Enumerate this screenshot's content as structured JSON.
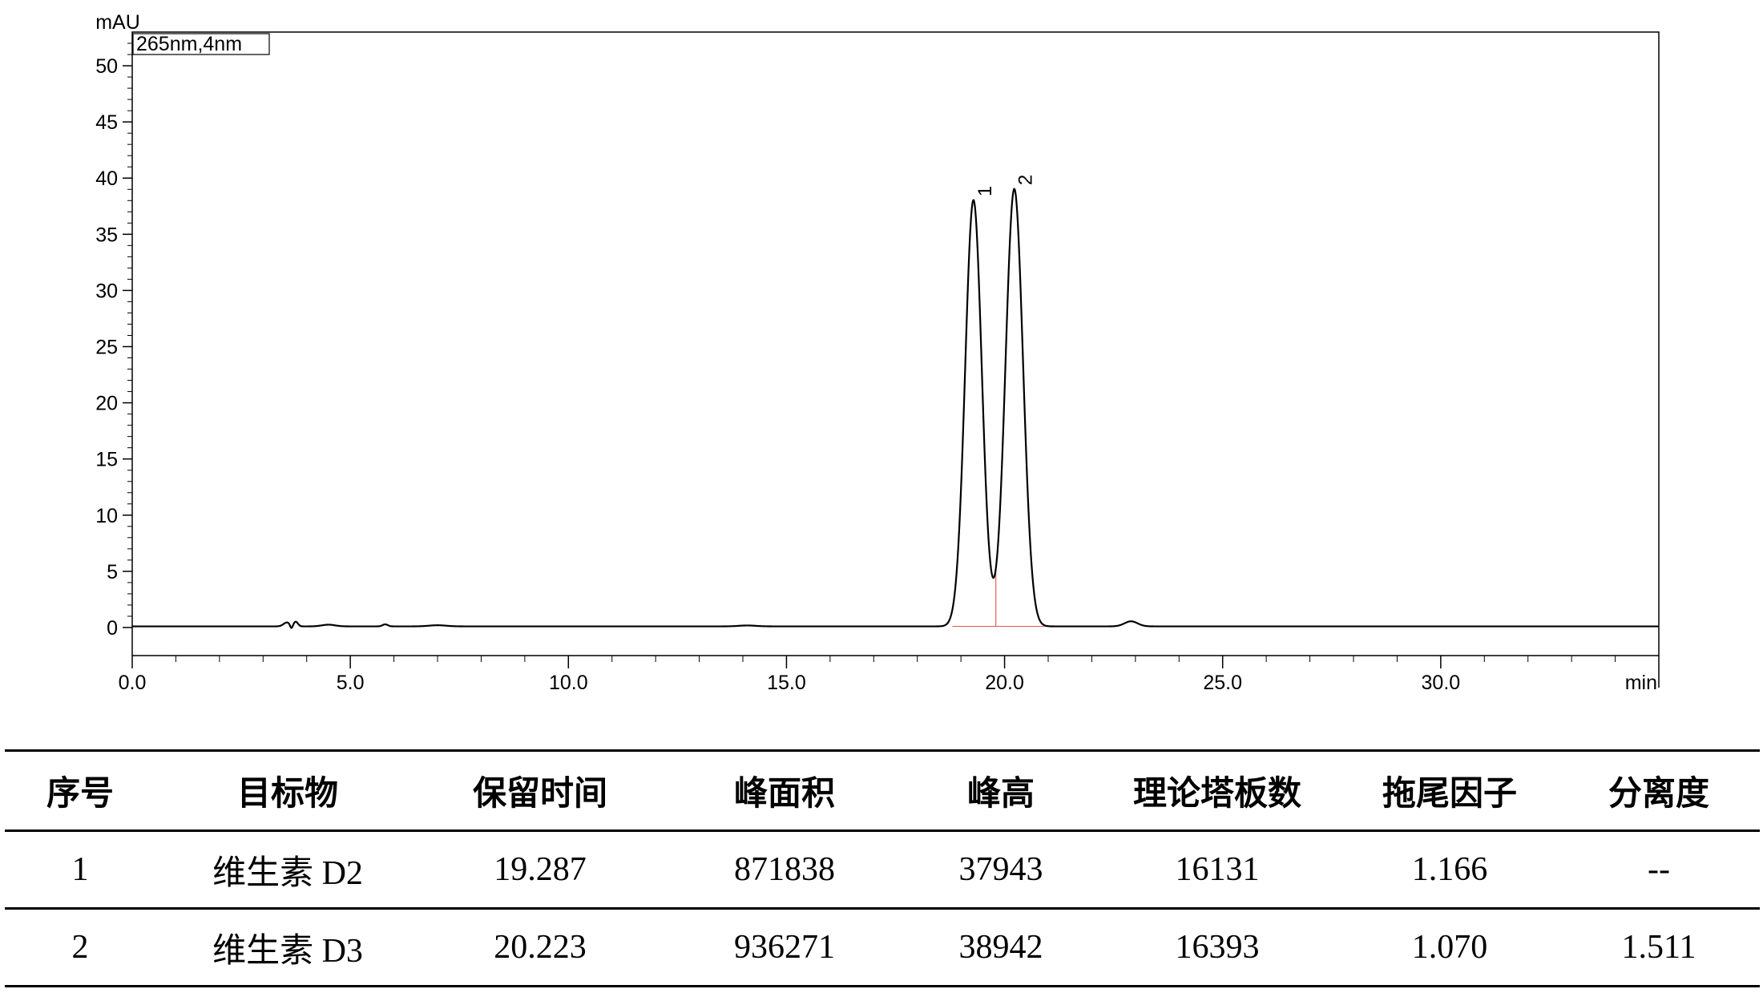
{
  "chart_data": {
    "type": "line",
    "ylabel": "mAU",
    "xlabel": "min",
    "legend": "265nm,4nm",
    "legend_position": "top-left",
    "xlim": [
      0,
      35
    ],
    "ylim": [
      -2.5,
      53
    ],
    "x_ticks": [
      0,
      5,
      10,
      15,
      20,
      25,
      30
    ],
    "x_tick_labels": [
      "0.0",
      "5.0",
      "10.0",
      "15.0",
      "20.0",
      "25.0",
      "30.0"
    ],
    "y_ticks": [
      0,
      5,
      10,
      15,
      20,
      25,
      30,
      35,
      40,
      45,
      50
    ],
    "y_tick_labels": [
      "0",
      "5",
      "10",
      "15",
      "20",
      "25",
      "30",
      "35",
      "40",
      "45",
      "50"
    ],
    "grid": false,
    "baseline_color": "#e06060",
    "series": [
      {
        "color": "#000000",
        "baseline": 0.1,
        "peaks": [
          {
            "label": "1",
            "rt": 19.287,
            "height": 37.943,
            "sigma": 0.19
          },
          {
            "label": "2",
            "rt": 20.223,
            "height": 38.942,
            "sigma": 0.2
          }
        ],
        "minor_bumps": [
          {
            "rt": 3.55,
            "height": 0.35,
            "sigma": 0.08
          },
          {
            "rt": 3.75,
            "height": 0.4,
            "sigma": 0.05
          },
          {
            "rt": 4.5,
            "height": 0.15,
            "sigma": 0.15
          },
          {
            "rt": 5.8,
            "height": 0.18,
            "sigma": 0.06
          },
          {
            "rt": 7.0,
            "height": 0.1,
            "sigma": 0.2
          },
          {
            "rt": 14.1,
            "height": 0.08,
            "sigma": 0.2
          },
          {
            "rt": 22.9,
            "height": 0.45,
            "sigma": 0.15
          }
        ],
        "dips": [
          {
            "rt": 3.65,
            "depth": 0.35,
            "sigma": 0.03
          }
        ]
      }
    ],
    "split_marker_rt": 19.8
  },
  "table": {
    "headers": [
      "序号",
      "目标物",
      "保留时间",
      "峰面积",
      "峰高",
      "理论塔板数",
      "拖尾因子",
      "分离度"
    ],
    "rows": [
      [
        "1",
        "维生素 D2",
        "19.287",
        "871838",
        "37943",
        "16131",
        "1.166",
        "--"
      ],
      [
        "2",
        "维生素 D3",
        "20.223",
        "936271",
        "38942",
        "16393",
        "1.070",
        "1.511"
      ]
    ]
  }
}
